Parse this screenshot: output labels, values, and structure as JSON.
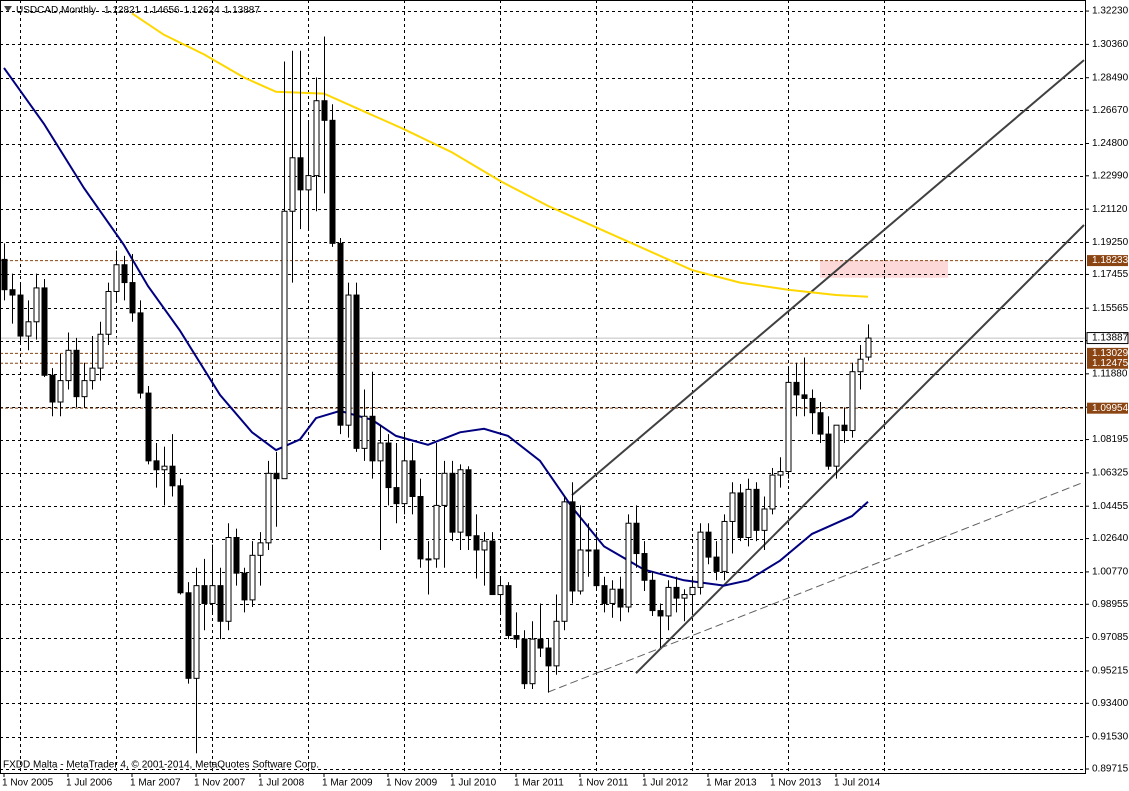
{
  "chart_data": {
    "type": "candlestick",
    "title": "USDCAD,Monthly",
    "footer": "FXDD Malta - MetaTrader 4, © 2001-2014, MetaQuotes Software Corp.",
    "up_color": "#ffffff",
    "down_color": "#000000",
    "x": [
      "2005-11-01",
      "2005-12-01",
      "2006-01-01",
      "2006-02-01",
      "2006-03-01",
      "2006-04-01",
      "2006-05-01",
      "2006-06-01",
      "2006-07-01",
      "2006-08-01",
      "2006-09-01",
      "2006-10-01",
      "2006-11-01",
      "2006-12-01",
      "2007-01-01",
      "2007-02-01",
      "2007-03-01",
      "2007-04-01",
      "2007-05-01",
      "2007-06-01",
      "2007-07-01",
      "2007-08-01",
      "2007-09-01",
      "2007-10-01",
      "2007-11-01",
      "2007-12-01",
      "2008-01-01",
      "2008-02-01",
      "2008-03-01",
      "2008-04-01",
      "2008-05-01",
      "2008-06-01",
      "2008-07-01",
      "2008-08-01",
      "2008-09-01",
      "2008-10-01",
      "2008-11-01",
      "2008-12-01",
      "2009-01-01",
      "2009-02-01",
      "2009-03-01",
      "2009-04-01",
      "2009-05-01",
      "2009-06-01",
      "2009-07-01",
      "2009-08-01",
      "2009-09-01",
      "2009-10-01",
      "2009-11-01",
      "2009-12-01",
      "2010-01-01",
      "2010-02-01",
      "2010-03-01",
      "2010-04-01",
      "2010-05-01",
      "2010-06-01",
      "2010-07-01",
      "2010-08-01",
      "2010-09-01",
      "2010-10-01",
      "2010-11-01",
      "2010-12-01",
      "2011-01-01",
      "2011-02-01",
      "2011-03-01",
      "2011-04-01",
      "2011-05-01",
      "2011-06-01",
      "2011-07-01",
      "2011-08-01",
      "2011-09-01",
      "2011-10-01",
      "2011-11-01",
      "2011-12-01",
      "2012-01-01",
      "2012-02-01",
      "2012-03-01",
      "2012-04-01",
      "2012-05-01",
      "2012-06-01",
      "2012-07-01",
      "2012-08-01",
      "2012-09-01",
      "2012-10-01",
      "2012-11-01",
      "2012-12-01",
      "2013-01-01",
      "2013-02-01",
      "2013-03-01",
      "2013-04-01",
      "2013-05-01",
      "2013-06-01",
      "2013-07-01",
      "2013-08-01",
      "2013-09-01",
      "2013-10-01",
      "2013-11-01",
      "2013-12-01",
      "2014-01-01",
      "2014-02-01",
      "2014-03-01",
      "2014-04-01",
      "2014-05-01",
      "2014-06-01",
      "2014-07-01",
      "2014-08-01",
      "2014-09-01",
      "2014-10-01",
      "2014-11-01"
    ],
    "open": [
      1.183,
      1.166,
      1.163,
      1.14,
      1.148,
      1.167,
      1.118,
      1.103,
      1.115,
      1.132,
      1.106,
      1.115,
      1.122,
      1.141,
      1.165,
      1.18,
      1.17,
      1.153,
      1.108,
      1.07,
      1.065,
      1.067,
      1.056,
      0.996,
      0.948,
      1.0,
      0.99,
      1.0,
      0.98,
      1.027,
      1.007,
      0.992,
      1.017,
      1.024,
      1.063,
      1.06,
      1.21,
      1.24,
      1.222,
      1.23,
      1.272,
      1.261,
      1.192,
      1.09,
      1.163,
      1.077,
      1.095,
      1.07,
      1.08,
      1.055,
      1.046,
      1.07,
      1.05,
      1.015,
      1.015,
      1.045,
      1.063,
      1.03,
      1.065,
      1.028,
      1.02,
      1.025,
      0.995,
      1.0,
      0.972,
      0.97,
      0.945,
      0.97,
      0.965,
      0.955,
      0.98,
      1.047,
      0.997,
      1.02,
      1.02,
      1.0,
      0.99,
      0.998,
      0.988,
      1.035,
      1.018,
      1.003,
      0.986,
      0.983,
      0.999,
      0.993,
      0.995,
      0.999,
      1.03,
      1.016,
      1.008,
      1.036,
      1.052,
      1.027,
      1.054,
      1.031,
      1.043,
      1.062,
      1.064,
      1.114,
      1.107,
      1.105,
      1.097,
      1.085,
      1.067,
      1.09,
      1.087,
      1.12,
      1.12821
    ],
    "high": [
      1.192,
      1.175,
      1.169,
      1.16,
      1.175,
      1.172,
      1.122,
      1.13,
      1.142,
      1.139,
      1.125,
      1.14,
      1.148,
      1.17,
      1.188,
      1.185,
      1.186,
      1.16,
      1.112,
      1.08,
      1.078,
      1.085,
      1.06,
      1.002,
      1.01,
      1.015,
      1.023,
      1.01,
      1.035,
      1.032,
      1.01,
      1.025,
      1.03,
      1.07,
      1.075,
      1.294,
      1.3,
      1.3,
      1.26,
      1.285,
      1.308,
      1.27,
      1.195,
      1.17,
      1.17,
      1.11,
      1.12,
      1.09,
      1.085,
      1.08,
      1.085,
      1.08,
      1.06,
      1.025,
      1.08,
      1.07,
      1.07,
      1.068,
      1.067,
      1.04,
      1.03,
      1.03,
      1.005,
      1.002,
      0.985,
      0.975,
      0.98,
      0.99,
      0.97,
      0.995,
      1.05,
      1.058,
      1.045,
      1.035,
      1.03,
      1.005,
      1.003,
      1.005,
      1.04,
      1.045,
      1.025,
      1.008,
      0.99,
      1.003,
      1.005,
      0.998,
      1.005,
      1.035,
      1.035,
      1.025,
      1.04,
      1.058,
      1.057,
      1.06,
      1.058,
      1.05,
      1.066,
      1.072,
      1.122,
      1.125,
      1.128,
      1.11,
      1.103,
      1.095,
      1.09,
      1.1,
      1.125,
      1.135,
      1.14656
    ],
    "low": [
      1.16,
      1.147,
      1.135,
      1.132,
      1.138,
      1.117,
      1.095,
      1.095,
      1.11,
      1.1,
      1.1,
      1.11,
      1.115,
      1.135,
      1.16,
      1.16,
      1.148,
      1.105,
      1.068,
      1.055,
      1.045,
      1.05,
      0.995,
      0.945,
      0.906,
      0.975,
      0.985,
      0.97,
      0.975,
      1.0,
      0.985,
      0.988,
      1.0,
      1.02,
      1.033,
      1.06,
      1.17,
      1.2,
      1.2,
      1.21,
      1.22,
      1.19,
      1.085,
      1.083,
      1.075,
      1.07,
      1.06,
      1.02,
      1.045,
      1.035,
      1.04,
      1.04,
      1.01,
      0.995,
      1.01,
      1.01,
      1.025,
      1.02,
      1.02,
      1.004,
      1.0,
      0.995,
      0.985,
      0.97,
      0.965,
      0.942,
      0.942,
      0.96,
      0.94,
      0.95,
      0.975,
      0.99,
      0.995,
      1.005,
      0.998,
      0.985,
      0.982,
      0.98,
      0.985,
      1.01,
      0.997,
      0.983,
      0.965,
      0.975,
      0.985,
      0.98,
      0.985,
      0.995,
      1.012,
      1.003,
      1.003,
      1.018,
      1.025,
      1.022,
      1.025,
      1.02,
      1.04,
      1.055,
      1.06,
      1.095,
      1.095,
      1.085,
      1.08,
      1.065,
      1.06,
      1.08,
      1.083,
      1.11,
      1.12624
    ],
    "close": [
      1.166,
      1.163,
      1.14,
      1.148,
      1.167,
      1.118,
      1.103,
      1.115,
      1.132,
      1.106,
      1.115,
      1.122,
      1.141,
      1.165,
      1.18,
      1.17,
      1.153,
      1.108,
      1.07,
      1.065,
      1.067,
      1.056,
      0.996,
      0.948,
      1.0,
      0.99,
      1.0,
      0.98,
      1.027,
      1.007,
      0.992,
      1.017,
      1.024,
      1.063,
      1.06,
      1.21,
      1.24,
      1.222,
      1.23,
      1.272,
      1.261,
      1.192,
      1.09,
      1.163,
      1.077,
      1.095,
      1.07,
      1.08,
      1.055,
      1.046,
      1.07,
      1.05,
      1.015,
      1.015,
      1.045,
      1.063,
      1.03,
      1.065,
      1.028,
      1.02,
      1.025,
      0.995,
      1.0,
      0.972,
      0.97,
      0.945,
      0.97,
      0.965,
      0.955,
      0.98,
      1.047,
      0.997,
      1.02,
      1.02,
      1.0,
      0.99,
      0.998,
      0.988,
      1.035,
      1.018,
      1.003,
      0.986,
      0.983,
      0.999,
      0.993,
      0.995,
      0.999,
      1.03,
      1.016,
      1.008,
      1.036,
      1.052,
      1.027,
      1.054,
      1.031,
      1.043,
      1.062,
      1.064,
      1.114,
      1.107,
      1.105,
      1.097,
      1.085,
      1.067,
      1.09,
      1.087,
      1.12,
      1.127,
      1.13887
    ],
    "overlays": [
      {
        "type": "line",
        "color": "#ffd700",
        "x": [
          "2007-03-01",
          "2007-07-01",
          "2007-12-01",
          "2008-05-01",
          "2008-09-01",
          "2009-03-01",
          "2009-08-01",
          "2010-01-01",
          "2010-07-01",
          "2011-01-01",
          "2011-07-01",
          "2012-01-01",
          "2012-07-01",
          "2013-01-01",
          "2013-07-01",
          "2014-01-01",
          "2014-07-01",
          "2014-11-01"
        ],
        "values": [
          1.321,
          1.309,
          1.298,
          1.285,
          1.277,
          1.276,
          1.266,
          1.256,
          1.243,
          1.227,
          1.213,
          1.201,
          1.189,
          1.177,
          1.17,
          1.166,
          1.163,
          1.162
        ]
      },
      {
        "type": "line",
        "color": "#000080",
        "x": [
          "2005-11-01",
          "2006-04-01",
          "2006-09-01",
          "2007-02-01",
          "2007-05-01",
          "2007-09-01",
          "2008-02-01",
          "2008-06-01",
          "2008-09-01",
          "2008-12-01",
          "2009-02-01",
          "2009-05-01",
          "2009-09-01",
          "2009-12-01",
          "2010-04-01",
          "2010-08-01",
          "2010-11-01",
          "2011-02-01",
          "2011-06-01",
          "2011-10-01",
          "2012-02-01",
          "2012-07-01",
          "2012-12-01",
          "2013-05-01",
          "2013-08-01",
          "2013-12-01",
          "2014-04-01",
          "2014-06-01",
          "2014-09-01",
          "2014-11-01"
        ],
        "values": [
          1.2904,
          1.259,
          1.223,
          1.191,
          1.168,
          1.143,
          1.107,
          1.086,
          1.076,
          1.082,
          1.094,
          1.098,
          1.093,
          1.084,
          1.079,
          1.086,
          1.088,
          1.084,
          1.07,
          1.044,
          1.022,
          1.009,
          1.003,
          1.0,
          1.003,
          1.014,
          1.029,
          1.033,
          1.039,
          1.047
        ]
      }
    ],
    "trendlines": [
      {
        "color": "#404040",
        "dashed": false,
        "x": [
          "2011-10-01",
          "2017-02-01"
        ],
        "values": [
          1.0508,
          1.2948
        ]
      },
      {
        "color": "#404040",
        "dashed": false,
        "x": [
          "2012-06-01",
          "2017-02-01"
        ],
        "values": [
          0.9509,
          1.2023
        ]
      },
      {
        "color": "#606060",
        "dashed": true,
        "x": [
          "2011-07-01",
          "2017-02-01"
        ],
        "values": [
          0.9403,
          1.0581
        ]
      }
    ],
    "zone": {
      "color": "#fcd8d8",
      "x": [
        "2014-05-01",
        "2015-09-01"
      ],
      "values": [
        1.1823,
        1.1727
      ]
    },
    "levels": [
      {
        "value": 1.18233,
        "color": "#8b4513"
      },
      {
        "value": 1.13029,
        "color": "#8b4513"
      },
      {
        "value": 1.12475,
        "color": "#8b4513"
      },
      {
        "value": 1.09954,
        "color": "#8b4513"
      }
    ],
    "last_price_color": "#c0c0c0",
    "xlim": [
      "2005-11-01",
      "2017-02-01"
    ],
    "ylim": [
      0.8949,
      1.3285
    ],
    "xticks": [
      {
        "value": "2005-11-01",
        "label": "1 Nov 2005"
      },
      {
        "value": "2006-07-01",
        "label": "1 Jul 2006"
      },
      {
        "value": "2007-03-01",
        "label": "1 Mar 2007"
      },
      {
        "value": "2007-11-01",
        "label": "1 Nov 2007"
      },
      {
        "value": "2008-07-01",
        "label": "1 Jul 2008"
      },
      {
        "value": "2009-03-01",
        "label": "1 Mar 2009"
      },
      {
        "value": "2009-11-01",
        "label": "1 Nov 2009"
      },
      {
        "value": "2010-07-01",
        "label": "1 Jul 2010"
      },
      {
        "value": "2011-03-01",
        "label": "1 Mar 2011"
      },
      {
        "value": "2011-11-01",
        "label": "1 Nov 2011"
      },
      {
        "value": "2012-07-01",
        "label": "1 Jul 2012"
      },
      {
        "value": "2013-03-01",
        "label": "1 Mar 2013"
      },
      {
        "value": "2013-11-01",
        "label": "1 Nov 2013"
      },
      {
        "value": "2014-07-01",
        "label": "1 Jul 2014"
      }
    ],
    "xgrid": [
      "2006-01-01",
      "2007-01-01",
      "2008-01-01",
      "2009-01-01",
      "2010-01-01",
      "2011-01-01",
      "2012-01-01",
      "2013-01-01",
      "2014-01-01",
      "2015-01-01"
    ],
    "yticks": [
      {
        "value": 1.3223,
        "label": "1.32230"
      },
      {
        "value": 1.3036,
        "label": "1.30360"
      },
      {
        "value": 1.2849,
        "label": "1.28490"
      },
      {
        "value": 1.2667,
        "label": "1.26670"
      },
      {
        "value": 1.248,
        "label": "1.24800"
      },
      {
        "value": 1.2299,
        "label": "1.22990"
      },
      {
        "value": 1.2112,
        "label": "1.21120"
      },
      {
        "value": 1.1925,
        "label": "1.19250"
      },
      {
        "value": 1.17455,
        "label": "1.17455"
      },
      {
        "value": 1.15565,
        "label": "1.15565"
      },
      {
        "value": 1.13745,
        "label": "1.13745"
      },
      {
        "value": 1.1188,
        "label": "1.11880"
      },
      {
        "value": 1.1001,
        "label": "1.10010"
      },
      {
        "value": 1.08195,
        "label": "1.08195"
      },
      {
        "value": 1.06325,
        "label": "1.06325"
      },
      {
        "value": 1.04455,
        "label": "1.04455"
      },
      {
        "value": 1.0264,
        "label": "1.02640"
      },
      {
        "value": 1.0077,
        "label": "1.00770"
      },
      {
        "value": 0.98955,
        "label": "0.98955"
      },
      {
        "value": 0.97085,
        "label": "0.97085"
      },
      {
        "value": 0.95215,
        "label": "0.95215"
      },
      {
        "value": 0.934,
        "label": "0.93400"
      },
      {
        "value": 0.9153,
        "label": "0.91530"
      },
      {
        "value": 0.89715,
        "label": "0.89715"
      }
    ],
    "grid": true
  }
}
